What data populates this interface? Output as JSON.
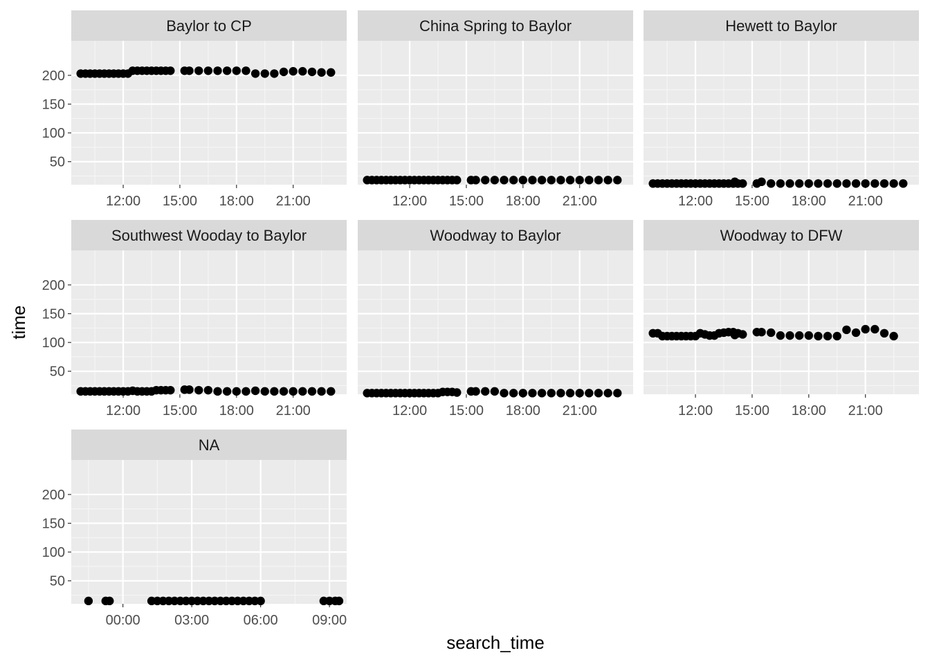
{
  "chart_data": {
    "type": "scatter",
    "xlabel": "search_time",
    "ylabel": "time",
    "ylim": [
      10,
      260
    ],
    "y_ticks": [
      50,
      100,
      150,
      200
    ],
    "y_tick_labels": [
      "50",
      "100",
      "150",
      "200"
    ],
    "grid": true,
    "theme": "grey panels with white gridlines",
    "point_color": "#000000",
    "panel_background": "#ebebeb",
    "strip_background": "#d9d9d9",
    "x_axes": {
      "day": {
        "xlim": [
          "09:15",
          "23:50"
        ],
        "ticks": [
          "12:00",
          "15:00",
          "18:00",
          "21:00"
        ]
      },
      "night": {
        "xlim": [
          "21:45",
          "09:45"
        ],
        "ticks": [
          "00:00",
          "03:00",
          "06:00",
          "09:00"
        ]
      }
    },
    "panels": [
      {
        "title": "Baylor to CP",
        "x_axis": "day",
        "points": [
          [
            "09:45",
            203
          ],
          [
            "10:00",
            203
          ],
          [
            "10:15",
            203
          ],
          [
            "10:30",
            203
          ],
          [
            "10:45",
            203
          ],
          [
            "11:00",
            203
          ],
          [
            "11:15",
            203
          ],
          [
            "11:30",
            203
          ],
          [
            "11:45",
            203
          ],
          [
            "12:00",
            203
          ],
          [
            "12:15",
            203
          ],
          [
            "12:30",
            208
          ],
          [
            "12:45",
            208
          ],
          [
            "13:00",
            208
          ],
          [
            "13:15",
            208
          ],
          [
            "13:30",
            208
          ],
          [
            "13:45",
            208
          ],
          [
            "14:00",
            208
          ],
          [
            "14:15",
            208
          ],
          [
            "14:30",
            208
          ],
          [
            "15:15",
            208
          ],
          [
            "15:30",
            208
          ],
          [
            "16:00",
            208
          ],
          [
            "16:30",
            208
          ],
          [
            "17:00",
            208
          ],
          [
            "17:30",
            208
          ],
          [
            "18:00",
            208
          ],
          [
            "18:30",
            208
          ],
          [
            "19:00",
            203
          ],
          [
            "19:30",
            203
          ],
          [
            "20:00",
            203
          ],
          [
            "20:30",
            206
          ],
          [
            "21:00",
            207
          ],
          [
            "21:30",
            207
          ],
          [
            "22:00",
            206
          ],
          [
            "22:30",
            205
          ],
          [
            "23:00",
            205
          ]
        ]
      },
      {
        "title": "China Spring to Baylor",
        "x_axis": "day",
        "points": [
          [
            "09:45",
            18
          ],
          [
            "10:00",
            18
          ],
          [
            "10:15",
            18
          ],
          [
            "10:30",
            18
          ],
          [
            "10:45",
            18
          ],
          [
            "11:00",
            18
          ],
          [
            "11:15",
            18
          ],
          [
            "11:30",
            18
          ],
          [
            "11:45",
            18
          ],
          [
            "12:00",
            18
          ],
          [
            "12:15",
            18
          ],
          [
            "12:30",
            18
          ],
          [
            "12:45",
            18
          ],
          [
            "13:00",
            18
          ],
          [
            "13:15",
            18
          ],
          [
            "13:30",
            18
          ],
          [
            "13:45",
            18
          ],
          [
            "14:00",
            18
          ],
          [
            "14:15",
            18
          ],
          [
            "14:30",
            18
          ],
          [
            "15:15",
            18
          ],
          [
            "15:30",
            18
          ],
          [
            "16:00",
            18
          ],
          [
            "16:30",
            18
          ],
          [
            "17:00",
            18
          ],
          [
            "17:30",
            18
          ],
          [
            "18:00",
            18
          ],
          [
            "18:30",
            18
          ],
          [
            "19:00",
            18
          ],
          [
            "19:30",
            18
          ],
          [
            "20:00",
            18
          ],
          [
            "20:30",
            18
          ],
          [
            "21:00",
            18
          ],
          [
            "21:30",
            18
          ],
          [
            "22:00",
            18
          ],
          [
            "22:30",
            18
          ],
          [
            "23:00",
            18
          ]
        ]
      },
      {
        "title": "Hewett to Baylor",
        "x_axis": "day",
        "points": [
          [
            "09:45",
            12
          ],
          [
            "10:00",
            12
          ],
          [
            "10:15",
            12
          ],
          [
            "10:30",
            12
          ],
          [
            "10:45",
            12
          ],
          [
            "11:00",
            12
          ],
          [
            "11:15",
            12
          ],
          [
            "11:30",
            12
          ],
          [
            "11:45",
            12
          ],
          [
            "12:00",
            12
          ],
          [
            "12:15",
            12
          ],
          [
            "12:30",
            12
          ],
          [
            "12:45",
            12
          ],
          [
            "13:00",
            12
          ],
          [
            "13:15",
            12
          ],
          [
            "13:30",
            12
          ],
          [
            "13:45",
            12
          ],
          [
            "14:00",
            12
          ],
          [
            "14:05",
            15
          ],
          [
            "14:15",
            12
          ],
          [
            "14:30",
            12
          ],
          [
            "15:15",
            12
          ],
          [
            "15:30",
            15
          ],
          [
            "16:00",
            12
          ],
          [
            "16:30",
            12
          ],
          [
            "17:00",
            12
          ],
          [
            "17:30",
            12
          ],
          [
            "18:00",
            12
          ],
          [
            "18:30",
            12
          ],
          [
            "19:00",
            12
          ],
          [
            "19:30",
            12
          ],
          [
            "20:00",
            12
          ],
          [
            "20:30",
            12
          ],
          [
            "21:00",
            12
          ],
          [
            "21:30",
            12
          ],
          [
            "22:00",
            12
          ],
          [
            "22:30",
            12
          ],
          [
            "23:00",
            12
          ]
        ]
      },
      {
        "title": "Southwest Wooday to Baylor",
        "x_axis": "day",
        "points": [
          [
            "09:45",
            15
          ],
          [
            "10:00",
            15
          ],
          [
            "10:15",
            15
          ],
          [
            "10:30",
            15
          ],
          [
            "10:45",
            15
          ],
          [
            "11:00",
            15
          ],
          [
            "11:15",
            15
          ],
          [
            "11:30",
            15
          ],
          [
            "11:45",
            15
          ],
          [
            "12:00",
            15
          ],
          [
            "12:15",
            15
          ],
          [
            "12:30",
            16
          ],
          [
            "12:45",
            15
          ],
          [
            "13:00",
            15
          ],
          [
            "13:15",
            15
          ],
          [
            "13:30",
            15
          ],
          [
            "13:45",
            17
          ],
          [
            "14:00",
            17
          ],
          [
            "14:15",
            17
          ],
          [
            "14:30",
            17
          ],
          [
            "15:15",
            18
          ],
          [
            "15:30",
            18
          ],
          [
            "16:00",
            17
          ],
          [
            "16:30",
            17
          ],
          [
            "17:00",
            15
          ],
          [
            "17:30",
            15
          ],
          [
            "18:00",
            15
          ],
          [
            "18:30",
            15
          ],
          [
            "19:00",
            16
          ],
          [
            "19:30",
            15
          ],
          [
            "20:00",
            15
          ],
          [
            "20:30",
            15
          ],
          [
            "21:00",
            15
          ],
          [
            "21:30",
            15
          ],
          [
            "22:00",
            15
          ],
          [
            "22:30",
            15
          ],
          [
            "23:00",
            15
          ]
        ]
      },
      {
        "title": "Woodway to Baylor",
        "x_axis": "day",
        "points": [
          [
            "09:45",
            12
          ],
          [
            "10:00",
            12
          ],
          [
            "10:15",
            12
          ],
          [
            "10:30",
            12
          ],
          [
            "10:45",
            12
          ],
          [
            "11:00",
            12
          ],
          [
            "11:15",
            12
          ],
          [
            "11:30",
            12
          ],
          [
            "11:45",
            12
          ],
          [
            "12:00",
            12
          ],
          [
            "12:15",
            12
          ],
          [
            "12:30",
            12
          ],
          [
            "12:45",
            12
          ],
          [
            "13:00",
            12
          ],
          [
            "13:15",
            12
          ],
          [
            "13:30",
            12
          ],
          [
            "13:45",
            14
          ],
          [
            "14:00",
            14
          ],
          [
            "14:15",
            14
          ],
          [
            "14:30",
            13
          ],
          [
            "15:15",
            15
          ],
          [
            "15:30",
            15
          ],
          [
            "16:00",
            15
          ],
          [
            "16:30",
            15
          ],
          [
            "17:00",
            12
          ],
          [
            "17:30",
            12
          ],
          [
            "18:00",
            12
          ],
          [
            "18:30",
            12
          ],
          [
            "19:00",
            12
          ],
          [
            "19:30",
            12
          ],
          [
            "20:00",
            12
          ],
          [
            "20:30",
            12
          ],
          [
            "21:00",
            12
          ],
          [
            "21:30",
            12
          ],
          [
            "22:00",
            12
          ],
          [
            "22:30",
            12
          ],
          [
            "23:00",
            12
          ]
        ]
      },
      {
        "title": "Woodway to DFW",
        "x_axis": "day",
        "points": [
          [
            "09:45",
            116
          ],
          [
            "10:00",
            116
          ],
          [
            "10:15",
            111
          ],
          [
            "10:30",
            111
          ],
          [
            "10:45",
            111
          ],
          [
            "11:00",
            111
          ],
          [
            "11:15",
            111
          ],
          [
            "11:30",
            111
          ],
          [
            "11:45",
            111
          ],
          [
            "12:00",
            111
          ],
          [
            "12:15",
            116
          ],
          [
            "12:30",
            114
          ],
          [
            "12:45",
            112
          ],
          [
            "13:00",
            112
          ],
          [
            "13:15",
            116
          ],
          [
            "13:30",
            117
          ],
          [
            "13:45",
            118
          ],
          [
            "14:00",
            118
          ],
          [
            "14:05",
            113
          ],
          [
            "14:15",
            116
          ],
          [
            "14:30",
            114
          ],
          [
            "15:15",
            118
          ],
          [
            "15:30",
            118
          ],
          [
            "16:00",
            117
          ],
          [
            "16:30",
            112
          ],
          [
            "17:00",
            112
          ],
          [
            "17:30",
            112
          ],
          [
            "18:00",
            112
          ],
          [
            "18:30",
            111
          ],
          [
            "19:00",
            111
          ],
          [
            "19:30",
            111
          ],
          [
            "20:00",
            122
          ],
          [
            "20:30",
            117
          ],
          [
            "21:00",
            123
          ],
          [
            "21:30",
            123
          ],
          [
            "22:00",
            116
          ],
          [
            "22:30",
            111
          ]
        ]
      },
      {
        "title": "NA",
        "x_axis": "night",
        "points": [
          [
            "22:30",
            15
          ],
          [
            "23:15",
            15
          ],
          [
            "23:25",
            15
          ],
          [
            "01:15",
            15
          ],
          [
            "01:30",
            15
          ],
          [
            "01:45",
            15
          ],
          [
            "02:00",
            15
          ],
          [
            "02:15",
            15
          ],
          [
            "02:30",
            15
          ],
          [
            "02:45",
            15
          ],
          [
            "03:00",
            15
          ],
          [
            "03:15",
            15
          ],
          [
            "03:30",
            15
          ],
          [
            "03:45",
            15
          ],
          [
            "04:00",
            15
          ],
          [
            "04:15",
            15
          ],
          [
            "04:30",
            15
          ],
          [
            "04:45",
            15
          ],
          [
            "05:00",
            15
          ],
          [
            "05:15",
            15
          ],
          [
            "05:30",
            15
          ],
          [
            "05:45",
            15
          ],
          [
            "06:00",
            15
          ],
          [
            "08:45",
            15
          ],
          [
            "09:00",
            15
          ],
          [
            "09:15",
            15
          ],
          [
            "09:25",
            15
          ]
        ]
      }
    ]
  }
}
